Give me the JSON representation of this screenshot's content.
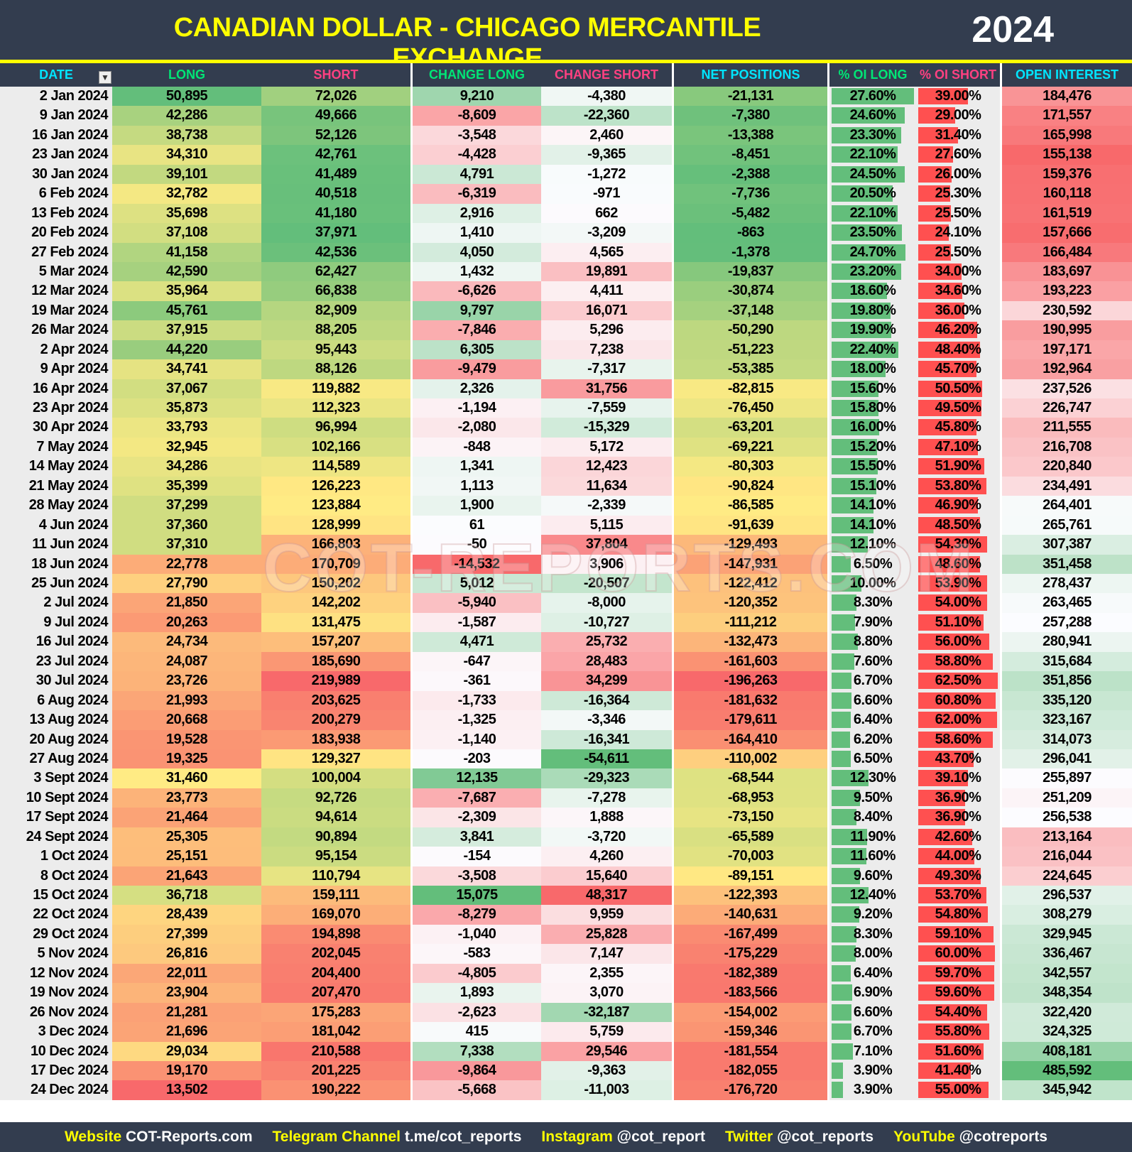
{
  "header": {
    "title": "CANADIAN DOLLAR - CHICAGO MERCANTILE EXCHANGE",
    "year": "2024"
  },
  "columns": {
    "date": "DATE",
    "long": "LONG",
    "short": "SHORT",
    "change_long": "CHANGE LONG",
    "change_short": "CHANGE SHORT",
    "net": "NET POSITIONS",
    "oi_long": "% OI LONG",
    "oi_short": "% OI SHORT",
    "oi": "OPEN INTEREST"
  },
  "header_colors": {
    "date": "#00e5ff",
    "long": "#00e676",
    "short": "#ff4081",
    "change_long": "#00e676",
    "change_short": "#ff4081",
    "net": "#00e5ff",
    "oi_long": "#00e676",
    "oi_short": "#ff4081",
    "oi": "#00e5ff"
  },
  "watermark": "COT-REPORTS.COM",
  "rows": [
    [
      "2 Jan 2024",
      "50,895",
      "72,026",
      "9,210",
      "-4,380",
      "-21,131",
      "27.60%",
      "39.00%",
      "184,476"
    ],
    [
      "9 Jan 2024",
      "42,286",
      "49,666",
      "-8,609",
      "-22,360",
      "-7,380",
      "24.60%",
      "29.00%",
      "171,557"
    ],
    [
      "16 Jan 2024",
      "38,738",
      "52,126",
      "-3,548",
      "2,460",
      "-13,388",
      "23.30%",
      "31.40%",
      "165,998"
    ],
    [
      "23 Jan 2024",
      "34,310",
      "42,761",
      "-4,428",
      "-9,365",
      "-8,451",
      "22.10%",
      "27.60%",
      "155,138"
    ],
    [
      "30 Jan 2024",
      "39,101",
      "41,489",
      "4,791",
      "-1,272",
      "-2,388",
      "24.50%",
      "26.00%",
      "159,376"
    ],
    [
      "6 Feb 2024",
      "32,782",
      "40,518",
      "-6,319",
      "-971",
      "-7,736",
      "20.50%",
      "25.30%",
      "160,118"
    ],
    [
      "13 Feb 2024",
      "35,698",
      "41,180",
      "2,916",
      "662",
      "-5,482",
      "22.10%",
      "25.50%",
      "161,519"
    ],
    [
      "20 Feb 2024",
      "37,108",
      "37,971",
      "1,410",
      "-3,209",
      "-863",
      "23.50%",
      "24.10%",
      "157,666"
    ],
    [
      "27 Feb 2024",
      "41,158",
      "42,536",
      "4,050",
      "4,565",
      "-1,378",
      "24.70%",
      "25.50%",
      "166,484"
    ],
    [
      "5 Mar 2024",
      "42,590",
      "62,427",
      "1,432",
      "19,891",
      "-19,837",
      "23.20%",
      "34.00%",
      "183,697"
    ],
    [
      "12 Mar 2024",
      "35,964",
      "66,838",
      "-6,626",
      "4,411",
      "-30,874",
      "18.60%",
      "34.60%",
      "193,223"
    ],
    [
      "19 Mar 2024",
      "45,761",
      "82,909",
      "9,797",
      "16,071",
      "-37,148",
      "19.80%",
      "36.00%",
      "230,592"
    ],
    [
      "26 Mar 2024",
      "37,915",
      "88,205",
      "-7,846",
      "5,296",
      "-50,290",
      "19.90%",
      "46.20%",
      "190,995"
    ],
    [
      "2 Apr 2024",
      "44,220",
      "95,443",
      "6,305",
      "7,238",
      "-51,223",
      "22.40%",
      "48.40%",
      "197,171"
    ],
    [
      "9 Apr 2024",
      "34,741",
      "88,126",
      "-9,479",
      "-7,317",
      "-53,385",
      "18.00%",
      "45.70%",
      "192,964"
    ],
    [
      "16 Apr 2024",
      "37,067",
      "119,882",
      "2,326",
      "31,756",
      "-82,815",
      "15.60%",
      "50.50%",
      "237,526"
    ],
    [
      "23 Apr 2024",
      "35,873",
      "112,323",
      "-1,194",
      "-7,559",
      "-76,450",
      "15.80%",
      "49.50%",
      "226,747"
    ],
    [
      "30 Apr 2024",
      "33,793",
      "96,994",
      "-2,080",
      "-15,329",
      "-63,201",
      "16.00%",
      "45.80%",
      "211,555"
    ],
    [
      "7 May 2024",
      "32,945",
      "102,166",
      "-848",
      "5,172",
      "-69,221",
      "15.20%",
      "47.10%",
      "216,708"
    ],
    [
      "14 May 2024",
      "34,286",
      "114,589",
      "1,341",
      "12,423",
      "-80,303",
      "15.50%",
      "51.90%",
      "220,840"
    ],
    [
      "21 May 2024",
      "35,399",
      "126,223",
      "1,113",
      "11,634",
      "-90,824",
      "15.10%",
      "53.80%",
      "234,491"
    ],
    [
      "28 May 2024",
      "37,299",
      "123,884",
      "1,900",
      "-2,339",
      "-86,585",
      "14.10%",
      "46.90%",
      "264,401"
    ],
    [
      "4 Jun 2024",
      "37,360",
      "128,999",
      "61",
      "5,115",
      "-91,639",
      "14.10%",
      "48.50%",
      "265,761"
    ],
    [
      "11 Jun 2024",
      "37,310",
      "166,803",
      "-50",
      "37,804",
      "-129,493",
      "12.10%",
      "54.30%",
      "307,387"
    ],
    [
      "18 Jun 2024",
      "22,778",
      "170,709",
      "-14,532",
      "3,906",
      "-147,931",
      "6.50%",
      "48.60%",
      "351,458"
    ],
    [
      "25 Jun 2024",
      "27,790",
      "150,202",
      "5,012",
      "-20,507",
      "-122,412",
      "10.00%",
      "53.90%",
      "278,437"
    ],
    [
      "2 Jul 2024",
      "21,850",
      "142,202",
      "-5,940",
      "-8,000",
      "-120,352",
      "8.30%",
      "54.00%",
      "263,465"
    ],
    [
      "9 Jul 2024",
      "20,263",
      "131,475",
      "-1,587",
      "-10,727",
      "-111,212",
      "7.90%",
      "51.10%",
      "257,288"
    ],
    [
      "16 Jul 2024",
      "24,734",
      "157,207",
      "4,471",
      "25,732",
      "-132,473",
      "8.80%",
      "56.00%",
      "280,941"
    ],
    [
      "23 Jul 2024",
      "24,087",
      "185,690",
      "-647",
      "28,483",
      "-161,603",
      "7.60%",
      "58.80%",
      "315,684"
    ],
    [
      "30 Jul 2024",
      "23,726",
      "219,989",
      "-361",
      "34,299",
      "-196,263",
      "6.70%",
      "62.50%",
      "351,856"
    ],
    [
      "6 Aug 2024",
      "21,993",
      "203,625",
      "-1,733",
      "-16,364",
      "-181,632",
      "6.60%",
      "60.80%",
      "335,120"
    ],
    [
      "13 Aug 2024",
      "20,668",
      "200,279",
      "-1,325",
      "-3,346",
      "-179,611",
      "6.40%",
      "62.00%",
      "323,167"
    ],
    [
      "20 Aug 2024",
      "19,528",
      "183,938",
      "-1,140",
      "-16,341",
      "-164,410",
      "6.20%",
      "58.60%",
      "314,073"
    ],
    [
      "27 Aug 2024",
      "19,325",
      "129,327",
      "-203",
      "-54,611",
      "-110,002",
      "6.50%",
      "43.70%",
      "296,041"
    ],
    [
      "3 Sept 2024",
      "31,460",
      "100,004",
      "12,135",
      "-29,323",
      "-68,544",
      "12.30%",
      "39.10%",
      "255,897"
    ],
    [
      "10 Sept 2024",
      "23,773",
      "92,726",
      "-7,687",
      "-7,278",
      "-68,953",
      "9.50%",
      "36.90%",
      "251,209"
    ],
    [
      "17 Sept 2024",
      "21,464",
      "94,614",
      "-2,309",
      "1,888",
      "-73,150",
      "8.40%",
      "36.90%",
      "256,538"
    ],
    [
      "24 Sept 2024",
      "25,305",
      "90,894",
      "3,841",
      "-3,720",
      "-65,589",
      "11.90%",
      "42.60%",
      "213,164"
    ],
    [
      "1 Oct 2024",
      "25,151",
      "95,154",
      "-154",
      "4,260",
      "-70,003",
      "11.60%",
      "44.00%",
      "216,044"
    ],
    [
      "8 Oct 2024",
      "21,643",
      "110,794",
      "-3,508",
      "15,640",
      "-89,151",
      "9.60%",
      "49.30%",
      "224,645"
    ],
    [
      "15 Oct 2024",
      "36,718",
      "159,111",
      "15,075",
      "48,317",
      "-122,393",
      "12.40%",
      "53.70%",
      "296,537"
    ],
    [
      "22 Oct 2024",
      "28,439",
      "169,070",
      "-8,279",
      "9,959",
      "-140,631",
      "9.20%",
      "54.80%",
      "308,279"
    ],
    [
      "29 Oct 2024",
      "27,399",
      "194,898",
      "-1,040",
      "25,828",
      "-167,499",
      "8.30%",
      "59.10%",
      "329,945"
    ],
    [
      "5 Nov 2024",
      "26,816",
      "202,045",
      "-583",
      "7,147",
      "-175,229",
      "8.00%",
      "60.00%",
      "336,467"
    ],
    [
      "12 Nov 2024",
      "22,011",
      "204,400",
      "-4,805",
      "2,355",
      "-182,389",
      "6.40%",
      "59.70%",
      "342,557"
    ],
    [
      "19 Nov 2024",
      "23,904",
      "207,470",
      "1,893",
      "3,070",
      "-183,566",
      "6.90%",
      "59.60%",
      "348,354"
    ],
    [
      "26 Nov 2024",
      "21,281",
      "175,283",
      "-2,623",
      "-32,187",
      "-154,002",
      "6.60%",
      "54.40%",
      "322,420"
    ],
    [
      "3 Dec 2024",
      "21,696",
      "181,042",
      "415",
      "5,759",
      "-159,346",
      "6.70%",
      "55.80%",
      "324,325"
    ],
    [
      "10 Dec 2024",
      "29,034",
      "210,588",
      "7,338",
      "29,546",
      "-181,554",
      "7.10%",
      "51.60%",
      "408,181"
    ],
    [
      "17 Dec 2024",
      "19,170",
      "201,225",
      "-9,864",
      "-9,363",
      "-182,055",
      "3.90%",
      "41.40%",
      "485,592"
    ],
    [
      "24 Dec 2024",
      "13,502",
      "190,222",
      "-5,668",
      "-11,003",
      "-176,720",
      "3.90%",
      "55.00%",
      "345,942"
    ]
  ],
  "footer": [
    {
      "label": "Website",
      "value": "COT-Reports.com"
    },
    {
      "label": "Telegram Channel",
      "value": "t.me/cot_reports"
    },
    {
      "label": "Instagram",
      "value": "@cot_report"
    },
    {
      "label": "Twitter",
      "value": "@cot_reports"
    },
    {
      "label": "YouTube",
      "value": "@cotreports"
    }
  ],
  "colors": {
    "header_bg": "#333d4f",
    "title": "#ffff00",
    "green": "#63be7b",
    "yellow": "#ffeb84",
    "red": "#f8696b",
    "bar_green": "#63be7b",
    "bar_red": "#ff5050"
  }
}
